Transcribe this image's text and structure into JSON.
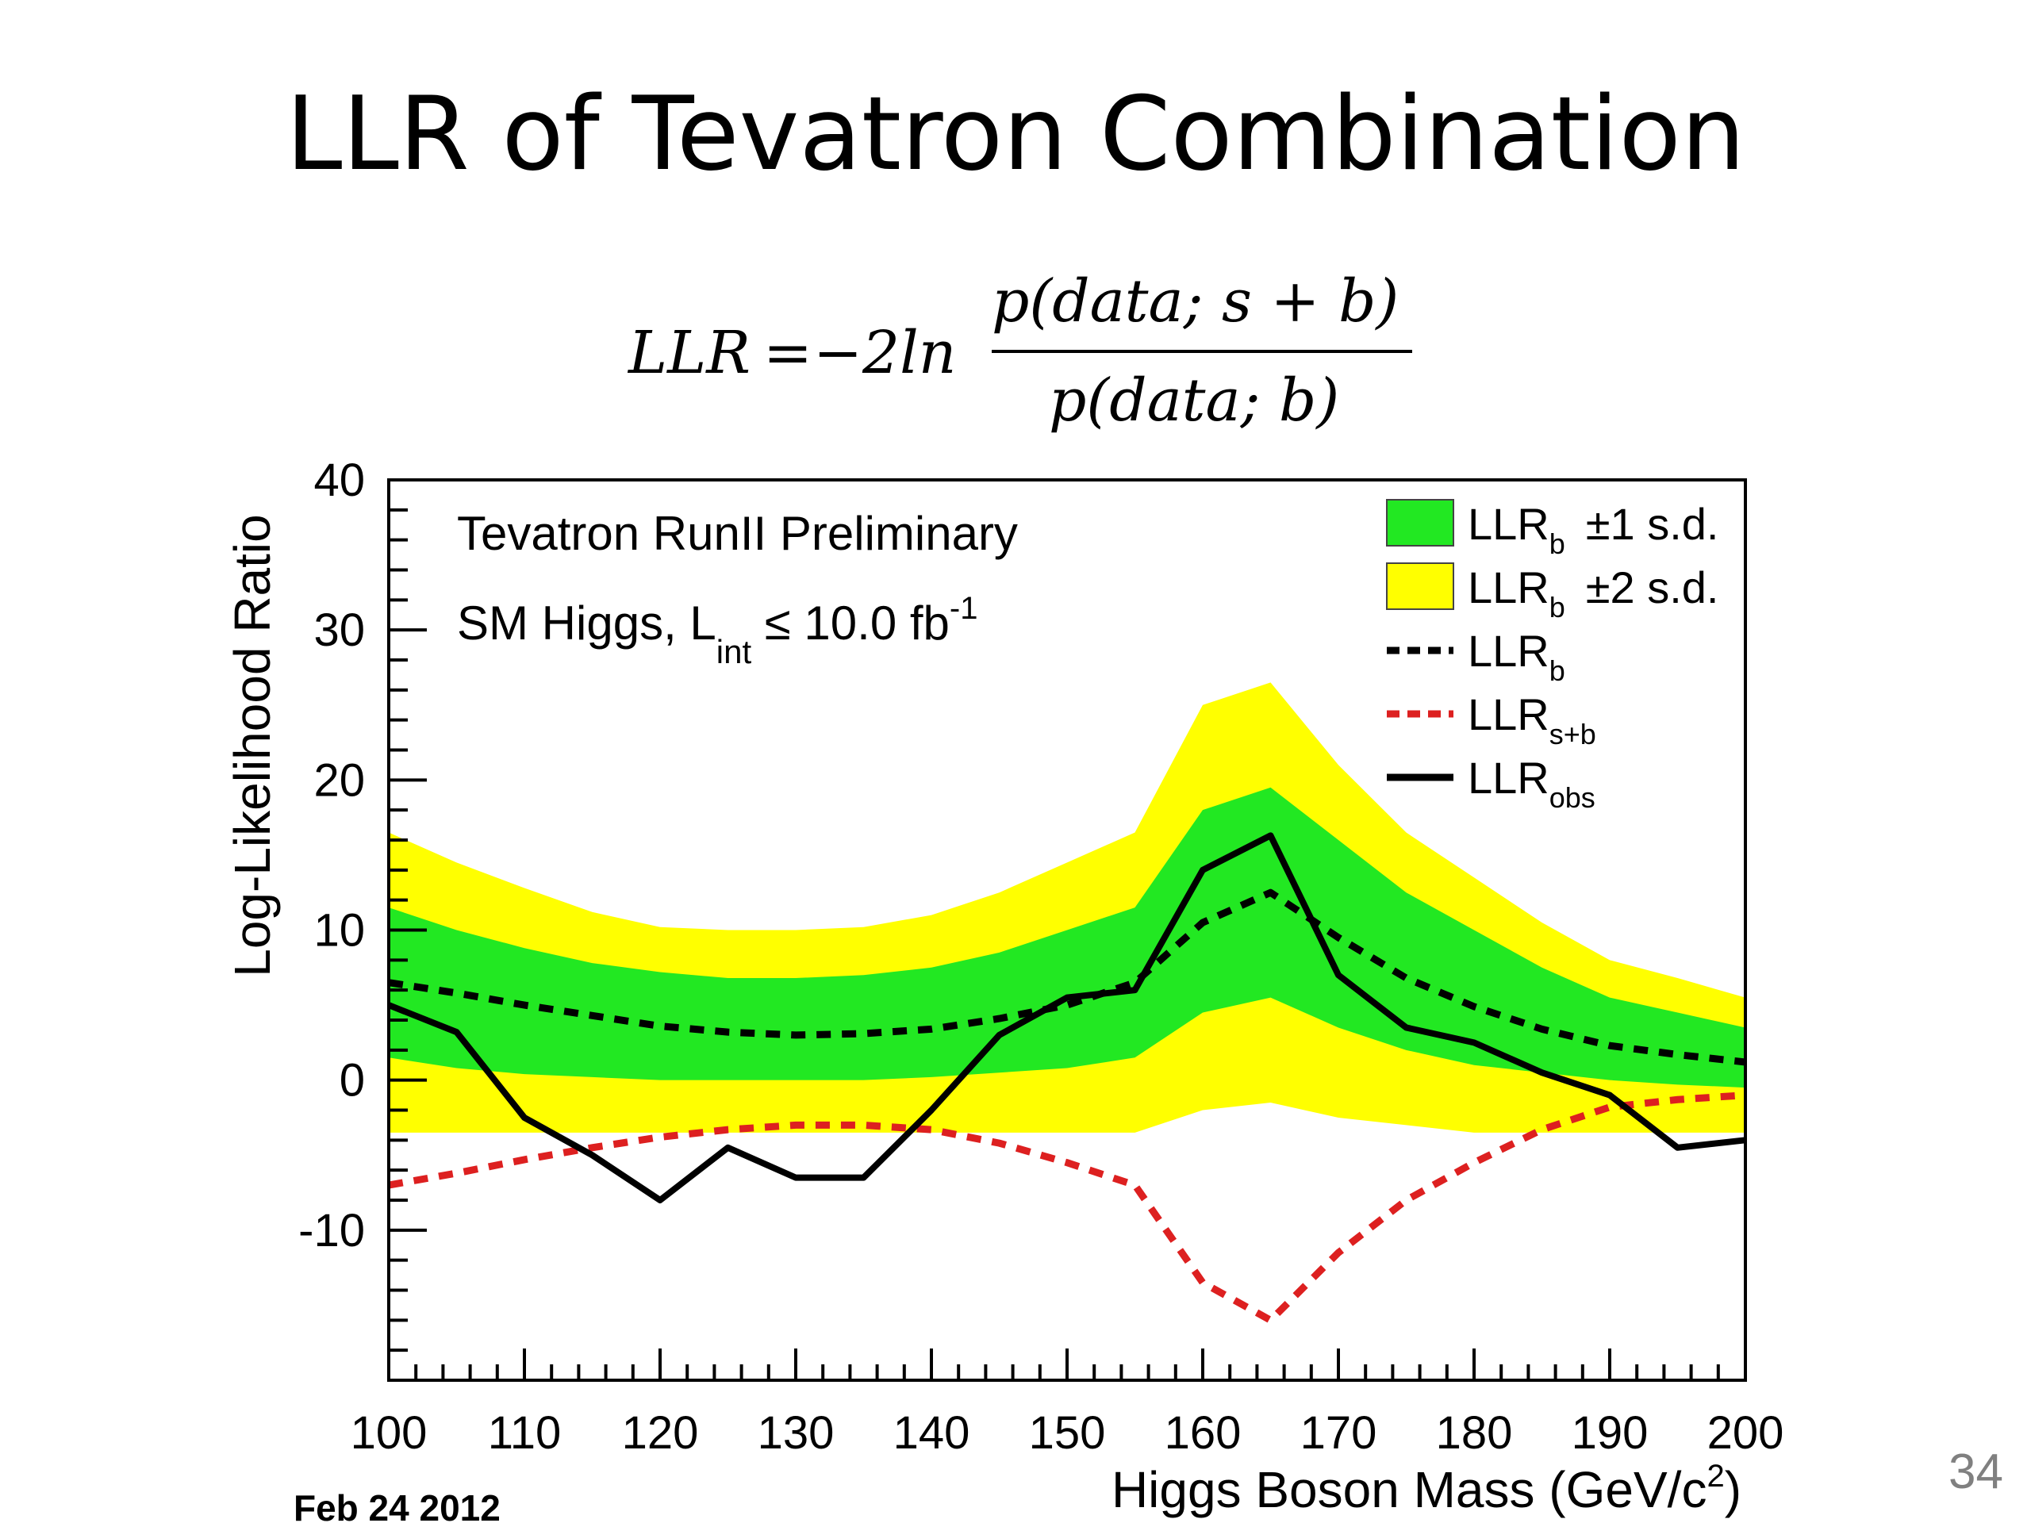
{
  "slide": {
    "title": "LLR of Tevatron Combination",
    "page_number": "34"
  },
  "formula": {
    "lhs": "LLR",
    "equals": "=",
    "coefficient": "−2ln",
    "numerator": "p(data; s + b)",
    "denominator": "p(data; b)"
  },
  "chart_data": {
    "type": "line",
    "xlabel": "Higgs Boson Mass (GeV/c",
    "xlabel_sup": "2",
    "xlabel_end": ")",
    "ylabel": "Log-Likelihood Ratio",
    "xlim": [
      100,
      200
    ],
    "ylim": [
      -20,
      40
    ],
    "x_ticks": [
      "100",
      "110",
      "120",
      "130",
      "140",
      "150",
      "160",
      "170",
      "180",
      "190",
      "200"
    ],
    "y_ticks": [
      "40",
      "30",
      "20",
      "10",
      "0",
      "-10"
    ],
    "annotations": {
      "line1": "Tevatron RunII Preliminary",
      "line2_pre": "SM Higgs, L",
      "line2_sub": "int",
      "line2_post": " ≤ 10.0 fb",
      "line2_sup": "-1",
      "date": "Feb 24 2012"
    },
    "legend": {
      "placement": "top-right",
      "items": [
        {
          "key": "band1",
          "label": "LLR",
          "sub": "b",
          "suffix": "±1 s.d.",
          "color": "#22e822",
          "style": "fill"
        },
        {
          "key": "band2",
          "label": "LLR",
          "sub": "b",
          "suffix": "±2 s.d.",
          "color": "#ffff00",
          "style": "fill"
        },
        {
          "key": "llrb",
          "label": "LLR",
          "sub": "b",
          "suffix": "",
          "color": "#000000",
          "style": "dashed"
        },
        {
          "key": "llrsb",
          "label": "LLR",
          "sub": "s+b",
          "suffix": "",
          "color": "#dd2020",
          "style": "dashed"
        },
        {
          "key": "llrobs",
          "label": "LLR",
          "sub": "obs",
          "suffix": "",
          "color": "#000000",
          "style": "solid"
        }
      ]
    },
    "x": [
      100,
      105,
      110,
      115,
      120,
      125,
      130,
      135,
      140,
      145,
      150,
      155,
      160,
      165,
      170,
      175,
      180,
      185,
      190,
      195,
      200
    ],
    "bands": {
      "plus2": [
        16.5,
        14.5,
        12.8,
        11.2,
        10.2,
        10.0,
        10.0,
        10.2,
        11.0,
        12.5,
        14.5,
        16.5,
        25.0,
        26.5,
        21.0,
        16.5,
        13.5,
        10.5,
        8.0,
        6.8,
        5.5
      ],
      "plus1": [
        11.5,
        10.0,
        8.8,
        7.8,
        7.2,
        6.8,
        6.8,
        7.0,
        7.5,
        8.5,
        10.0,
        11.5,
        18.0,
        19.5,
        16.0,
        12.5,
        10.0,
        7.5,
        5.5,
        4.5,
        3.5
      ],
      "minus1": [
        1.5,
        0.8,
        0.4,
        0.2,
        0.0,
        0.0,
        0.0,
        0.0,
        0.2,
        0.5,
        0.8,
        1.5,
        4.5,
        5.5,
        3.5,
        2.0,
        1.0,
        0.5,
        0.0,
        -0.3,
        -0.5
      ],
      "minus2": [
        -3.5,
        -3.5,
        -3.5,
        -3.5,
        -3.5,
        -3.5,
        -3.5,
        -3.5,
        -3.5,
        -3.5,
        -3.5,
        -3.5,
        -2.0,
        -1.5,
        -2.5,
        -3.0,
        -3.5,
        -3.5,
        -3.5,
        -3.5,
        -3.5
      ]
    },
    "series": [
      {
        "key": "llrb",
        "values": [
          6.5,
          5.8,
          5.0,
          4.3,
          3.6,
          3.2,
          3.0,
          3.1,
          3.4,
          4.1,
          5.0,
          6.5,
          10.5,
          12.5,
          9.5,
          6.8,
          4.9,
          3.4,
          2.3,
          1.7,
          1.2
        ]
      },
      {
        "key": "llrsb",
        "values": [
          -7.0,
          -6.2,
          -5.3,
          -4.5,
          -3.8,
          -3.3,
          -3.0,
          -3.0,
          -3.3,
          -4.2,
          -5.5,
          -7.0,
          -13.5,
          -16.0,
          -11.5,
          -8.0,
          -5.5,
          -3.3,
          -1.8,
          -1.3,
          -1.0
        ]
      },
      {
        "key": "llrobs",
        "values": [
          5.0,
          3.2,
          -2.5,
          -5.0,
          -8.0,
          -4.5,
          -6.5,
          -6.5,
          -2.0,
          3.0,
          5.5,
          6.0,
          14.0,
          16.3,
          7.0,
          3.5,
          2.5,
          0.5,
          -1.0,
          -4.5,
          -4.0
        ]
      }
    ]
  }
}
